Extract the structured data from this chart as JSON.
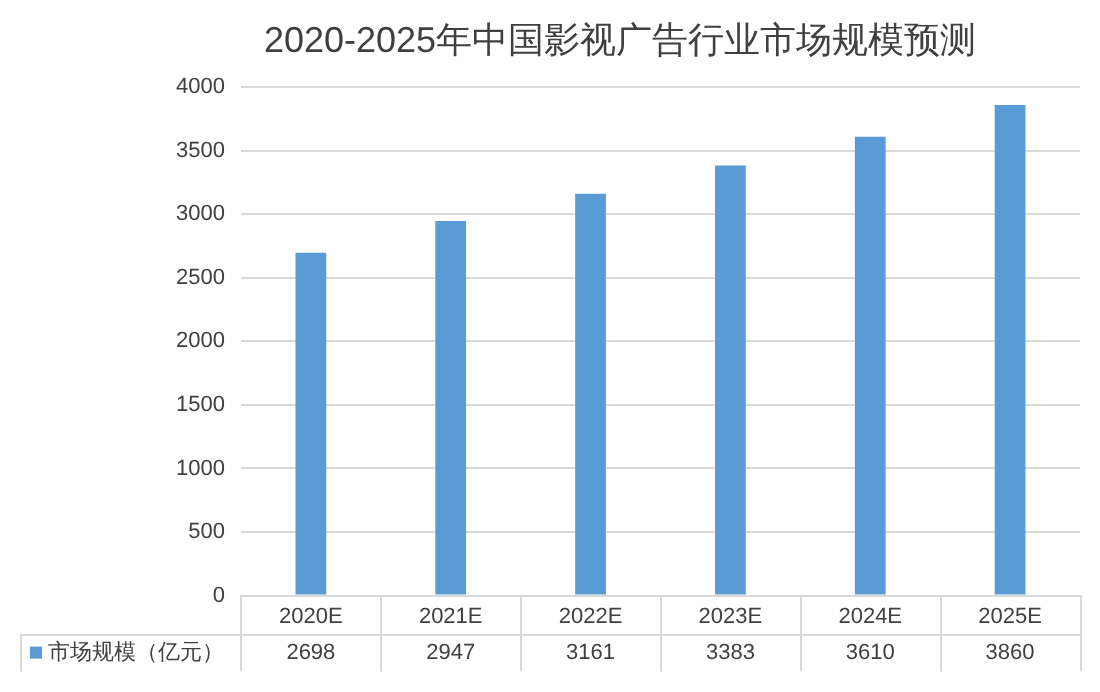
{
  "chart_data": {
    "type": "bar",
    "title": "2020-2025年中国影视广告行业市场规模预测",
    "categories": [
      "2020E",
      "2021E",
      "2022E",
      "2023E",
      "2024E",
      "2025E"
    ],
    "series": [
      {
        "name": "市场规模（亿元）",
        "color": "#5b9bd5",
        "values": [
          2698,
          2947,
          3161,
          3383,
          3610,
          3860
        ]
      }
    ],
    "ylim": [
      0,
      4000
    ],
    "yticks": [
      0,
      500,
      1000,
      1500,
      2000,
      2500,
      3000,
      3500,
      4000
    ],
    "grid": "y",
    "legend": "bottom",
    "data_labels": true
  }
}
